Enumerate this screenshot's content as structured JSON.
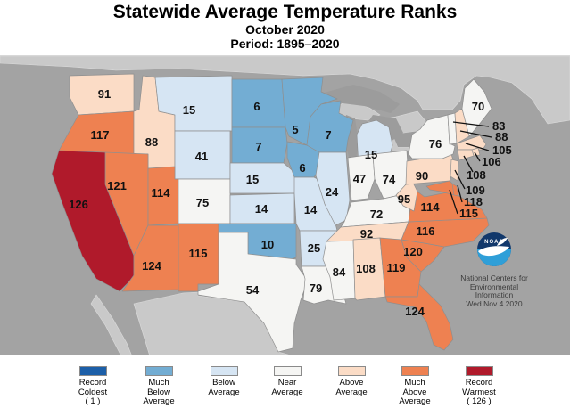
{
  "title": "Statewide Average Temperature Ranks",
  "subtitle": "October 2020",
  "period": "Period: 1895–2020",
  "noaa": {
    "logo_text": "NOAA",
    "org_lines": [
      "National Centers for",
      "Environmental",
      "Information"
    ],
    "date": "Wed Nov 4 2020"
  },
  "palette": {
    "record_coldest": "#1c5fa8",
    "much_below": "#73add3",
    "below": "#d6e5f3",
    "near": "#f5f5f3",
    "above": "#fbdcc6",
    "much_above": "#ee8151",
    "record_warmest": "#b01a2b"
  },
  "map_colors": {
    "ocean": "#a3a3a3",
    "foreign_land": "#c9c9c9",
    "lake": "#9c9c9c"
  },
  "legend": [
    {
      "key": "record_coldest",
      "lines": [
        "Record",
        "Coldest",
        "( 1 )"
      ]
    },
    {
      "key": "much_below",
      "lines": [
        "Much",
        "Below",
        "Average"
      ]
    },
    {
      "key": "below",
      "lines": [
        "Below",
        "Average"
      ]
    },
    {
      "key": "near",
      "lines": [
        "Near",
        "Average"
      ]
    },
    {
      "key": "above",
      "lines": [
        "Above",
        "Average"
      ]
    },
    {
      "key": "much_above",
      "lines": [
        "Much",
        "Above",
        "Average"
      ]
    },
    {
      "key": "record_warmest",
      "lines": [
        "Record",
        "Warmest",
        "( 126 )"
      ]
    }
  ],
  "chart_data": {
    "type": "choropleth",
    "region": "Contiguous United States",
    "unit": "temperature rank, 1 = record coldest, 126 = record warmest (126-year period)",
    "states": [
      {
        "abbr": "WA",
        "name": "Washington",
        "rank": 91,
        "category": "above"
      },
      {
        "abbr": "OR",
        "name": "Oregon",
        "rank": 117,
        "category": "much_above"
      },
      {
        "abbr": "CA",
        "name": "California",
        "rank": 126,
        "category": "record_warmest"
      },
      {
        "abbr": "ID",
        "name": "Idaho",
        "rank": 88,
        "category": "above"
      },
      {
        "abbr": "NV",
        "name": "Nevada",
        "rank": 121,
        "category": "much_above"
      },
      {
        "abbr": "UT",
        "name": "Utah",
        "rank": 114,
        "category": "much_above"
      },
      {
        "abbr": "AZ",
        "name": "Arizona",
        "rank": 124,
        "category": "much_above"
      },
      {
        "abbr": "MT",
        "name": "Montana",
        "rank": 15,
        "category": "below"
      },
      {
        "abbr": "WY",
        "name": "Wyoming",
        "rank": 41,
        "category": "below"
      },
      {
        "abbr": "CO",
        "name": "Colorado",
        "rank": 75,
        "category": "near"
      },
      {
        "abbr": "NM",
        "name": "New Mexico",
        "rank": 115,
        "category": "much_above"
      },
      {
        "abbr": "ND",
        "name": "North Dakota",
        "rank": 6,
        "category": "much_below"
      },
      {
        "abbr": "SD",
        "name": "South Dakota",
        "rank": 7,
        "category": "much_below"
      },
      {
        "abbr": "NE",
        "name": "Nebraska",
        "rank": 15,
        "category": "below"
      },
      {
        "abbr": "KS",
        "name": "Kansas",
        "rank": 14,
        "category": "below"
      },
      {
        "abbr": "OK",
        "name": "Oklahoma",
        "rank": 10,
        "category": "much_below"
      },
      {
        "abbr": "TX",
        "name": "Texas",
        "rank": 54,
        "category": "near"
      },
      {
        "abbr": "MN",
        "name": "Minnesota",
        "rank": 5,
        "category": "much_below"
      },
      {
        "abbr": "IA",
        "name": "Iowa",
        "rank": 6,
        "category": "much_below"
      },
      {
        "abbr": "MO",
        "name": "Missouri",
        "rank": 14,
        "category": "below"
      },
      {
        "abbr": "AR",
        "name": "Arkansas",
        "rank": 25,
        "category": "below"
      },
      {
        "abbr": "LA",
        "name": "Louisiana",
        "rank": 79,
        "category": "near"
      },
      {
        "abbr": "WI",
        "name": "Wisconsin",
        "rank": 7,
        "category": "much_below"
      },
      {
        "abbr": "IL",
        "name": "Illinois",
        "rank": 24,
        "category": "below"
      },
      {
        "abbr": "MS",
        "name": "Mississippi",
        "rank": 84,
        "category": "near"
      },
      {
        "abbr": "MI",
        "name": "Michigan",
        "rank": 15,
        "category": "below"
      },
      {
        "abbr": "IN",
        "name": "Indiana",
        "rank": 47,
        "category": "near"
      },
      {
        "abbr": "OH",
        "name": "Ohio",
        "rank": 74,
        "category": "near"
      },
      {
        "abbr": "KY",
        "name": "Kentucky",
        "rank": 72,
        "category": "near"
      },
      {
        "abbr": "TN",
        "name": "Tennessee",
        "rank": 92,
        "category": "above"
      },
      {
        "abbr": "AL",
        "name": "Alabama",
        "rank": 108,
        "category": "above"
      },
      {
        "abbr": "GA",
        "name": "Georgia",
        "rank": 119,
        "category": "much_above"
      },
      {
        "abbr": "FL",
        "name": "Florida",
        "rank": 124,
        "category": "much_above"
      },
      {
        "abbr": "SC",
        "name": "South Carolina",
        "rank": 120,
        "category": "much_above"
      },
      {
        "abbr": "NC",
        "name": "North Carolina",
        "rank": 116,
        "category": "much_above"
      },
      {
        "abbr": "VA",
        "name": "Virginia",
        "rank": 114,
        "category": "much_above"
      },
      {
        "abbr": "WV",
        "name": "West Virginia",
        "rank": 95,
        "category": "above"
      },
      {
        "abbr": "PA",
        "name": "Pennsylvania",
        "rank": 90,
        "category": "above"
      },
      {
        "abbr": "NY",
        "name": "New York",
        "rank": 76,
        "category": "near"
      },
      {
        "abbr": "ME",
        "name": "Maine",
        "rank": 70,
        "category": "near"
      },
      {
        "abbr": "VT",
        "name": "Vermont",
        "rank": 83,
        "category": "near"
      },
      {
        "abbr": "NH",
        "name": "New Hampshire",
        "rank": 88,
        "category": "above"
      },
      {
        "abbr": "MA",
        "name": "Massachusetts",
        "rank": 105,
        "category": "above"
      },
      {
        "abbr": "RI",
        "name": "Rhode Island",
        "rank": 106,
        "category": "above"
      },
      {
        "abbr": "CT",
        "name": "Connecticut",
        "rank": 108,
        "category": "above"
      },
      {
        "abbr": "NJ",
        "name": "New Jersey",
        "rank": 109,
        "category": "above"
      },
      {
        "abbr": "DE",
        "name": "Delaware",
        "rank": 118,
        "category": "much_above"
      },
      {
        "abbr": "MD",
        "name": "Maryland",
        "rank": 115,
        "category": "much_above"
      }
    ],
    "callout_states": [
      "VT",
      "NH",
      "MA",
      "RI",
      "CT",
      "NJ",
      "DE",
      "MD"
    ]
  }
}
